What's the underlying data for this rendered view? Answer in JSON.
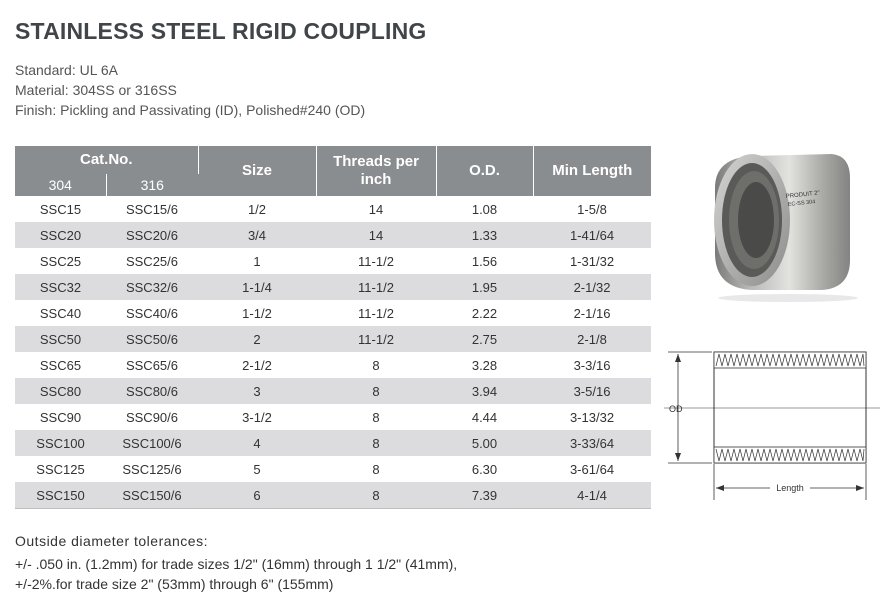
{
  "title": "STAINLESS STEEL RIGID COUPLING",
  "specs": {
    "standard": "Standard: UL 6A",
    "material": "Material: 304SS or 316SS",
    "finish": "Finish: Pickling and Passivating (ID), Polished#240 (OD)"
  },
  "table": {
    "headers": {
      "catno": "Cat.No.",
      "sub304": "304",
      "sub316": "316",
      "size": "Size",
      "threads": "Threads per inch",
      "od": "O.D.",
      "minlength": "Min Length"
    },
    "rows": [
      {
        "c304": "SSC15",
        "c316": "SSC15/6",
        "size": "1/2",
        "threads": "14",
        "od": "1.08",
        "min": "1-5/8"
      },
      {
        "c304": "SSC20",
        "c316": "SSC20/6",
        "size": "3/4",
        "threads": "14",
        "od": "1.33",
        "min": "1-41/64"
      },
      {
        "c304": "SSC25",
        "c316": "SSC25/6",
        "size": "1",
        "threads": "11-1/2",
        "od": "1.56",
        "min": "1-31/32"
      },
      {
        "c304": "SSC32",
        "c316": "SSC32/6",
        "size": "1-1/4",
        "threads": "11-1/2",
        "od": "1.95",
        "min": "2-1/32"
      },
      {
        "c304": "SSC40",
        "c316": "SSC40/6",
        "size": "1-1/2",
        "threads": "11-1/2",
        "od": "2.22",
        "min": "2-1/16"
      },
      {
        "c304": "SSC50",
        "c316": "SSC50/6",
        "size": "2",
        "threads": "11-1/2",
        "od": "2.75",
        "min": "2-1/8"
      },
      {
        "c304": "SSC65",
        "c316": "SSC65/6",
        "size": "2-1/2",
        "threads": "8",
        "od": "3.28",
        "min": "3-3/16"
      },
      {
        "c304": "SSC80",
        "c316": "SSC80/6",
        "size": "3",
        "threads": "8",
        "od": "3.94",
        "min": "3-5/16"
      },
      {
        "c304": "SSC90",
        "c316": "SSC90/6",
        "size": "3-1/2",
        "threads": "8",
        "od": "4.44",
        "min": "3-13/32"
      },
      {
        "c304": "SSC100",
        "c316": "SSC100/6",
        "size": "4",
        "threads": "8",
        "od": "5.00",
        "min": "3-33/64"
      },
      {
        "c304": "SSC125",
        "c316": "SSC125/6",
        "size": "5",
        "threads": "8",
        "od": "6.30",
        "min": "3-61/64"
      },
      {
        "c304": "SSC150",
        "c316": "SSC150/6",
        "size": "6",
        "threads": "8",
        "od": "7.39",
        "min": "4-1/4"
      }
    ]
  },
  "notes": {
    "heading": "Outside diameter tolerances:",
    "line1": "+/- .050 in. (1.2mm) for trade sizes 1/2\" (16mm) through 1 1/2\" (41mm),",
    "line2": "+/-2%.for trade size 2\" (53mm) through 6\" (155mm)"
  },
  "photo": {
    "stamp_line1": "PRODUIT  2\"",
    "stamp_line2": "EC-SS 304"
  },
  "diagram": {
    "od_label": "OD",
    "length_label": "Length"
  },
  "colors": {
    "header_bg": "#8a8d90",
    "alt_row_bg": "#dcdcde",
    "title_color": "#3f4548"
  }
}
